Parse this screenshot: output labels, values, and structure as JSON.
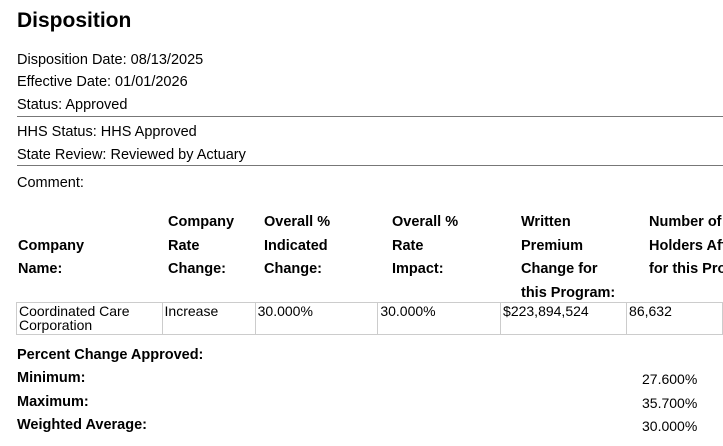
{
  "title": "Disposition",
  "fields": {
    "disposition_date": "Disposition Date: 08/13/2025",
    "effective_date": "Effective Date: 01/01/2026",
    "status": "Status: Approved",
    "hhs_status": "HHS Status: HHS Approved",
    "state_review": "State Review: Reviewed by Actuary",
    "comment": "Comment:"
  },
  "table": {
    "headers": [
      [
        "Company",
        "Name:"
      ],
      [
        "Company",
        "Rate",
        "Change:"
      ],
      [
        "Overall %",
        "Indicated",
        "Change:"
      ],
      [
        "Overall %",
        "Rate",
        "Impact:"
      ],
      [
        "Written",
        "Premium",
        "Change for",
        "this Program:"
      ],
      [
        "Number of Policy",
        "Holders Affected",
        "for this Program:"
      ]
    ],
    "rows": [
      [
        "Coordinated Care Corporation",
        "Increase",
        "30.000%",
        "30.000%",
        "$223,894,524",
        "86,632"
      ]
    ]
  },
  "percent_change": {
    "heading": "Percent Change Approved:",
    "minimum_label": "Minimum:",
    "minimum": "27.600%",
    "maximum_label": "Maximum:",
    "maximum": "35.700%",
    "weighted_label": "Weighted Average:",
    "weighted": "30.000%"
  }
}
